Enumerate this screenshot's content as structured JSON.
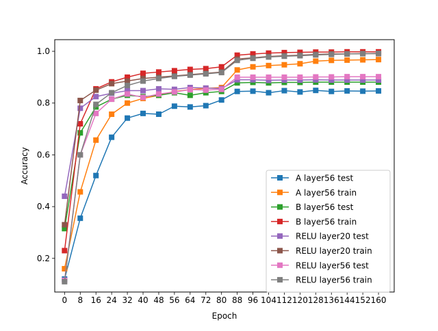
{
  "chart_data": {
    "type": "line",
    "title": "",
    "xlabel": "Epoch",
    "ylabel": "Accuracy",
    "xlim": [
      -5,
      168
    ],
    "ylim": [
      0.07,
      1.045
    ],
    "grid": false,
    "legend_position": "lower-right",
    "x": [
      0,
      8,
      16,
      24,
      32,
      40,
      48,
      56,
      64,
      72,
      80,
      88,
      96,
      104,
      112,
      120,
      128,
      136,
      144,
      152,
      160
    ],
    "xticks": [
      0,
      8,
      16,
      24,
      32,
      40,
      48,
      56,
      64,
      72,
      80,
      88,
      96,
      104,
      112,
      120,
      128,
      136,
      144,
      152,
      160
    ],
    "yticks": [
      0.2,
      0.4,
      0.6,
      0.8,
      1.0
    ],
    "ytick_labels": [
      "0.2",
      "0.4",
      "0.6",
      "0.8",
      "1.0"
    ],
    "series": [
      {
        "name": "A layer56 test",
        "color": "#1f77b4",
        "marker": "square",
        "values": [
          0.12,
          0.355,
          0.52,
          0.668,
          0.742,
          0.76,
          0.757,
          0.788,
          0.785,
          0.79,
          0.812,
          0.845,
          0.846,
          0.84,
          0.848,
          0.843,
          0.849,
          0.845,
          0.847,
          0.846,
          0.847
        ]
      },
      {
        "name": "A layer56 train",
        "color": "#ff7f0e",
        "marker": "square",
        "values": [
          0.16,
          0.457,
          0.657,
          0.757,
          0.8,
          0.818,
          0.83,
          0.845,
          0.852,
          0.857,
          0.86,
          0.928,
          0.94,
          0.945,
          0.948,
          0.952,
          0.962,
          0.965,
          0.966,
          0.967,
          0.968
        ]
      },
      {
        "name": "B layer56 test",
        "color": "#2ca02c",
        "marker": "square",
        "values": [
          0.315,
          0.685,
          0.785,
          0.815,
          0.83,
          0.825,
          0.83,
          0.84,
          0.83,
          0.84,
          0.845,
          0.878,
          0.88,
          0.878,
          0.88,
          0.88,
          0.881,
          0.881,
          0.881,
          0.881,
          0.881
        ]
      },
      {
        "name": "B layer56 train",
        "color": "#d62728",
        "marker": "square",
        "values": [
          0.23,
          0.72,
          0.855,
          0.882,
          0.9,
          0.915,
          0.92,
          0.925,
          0.93,
          0.933,
          0.94,
          0.985,
          0.99,
          0.993,
          0.995,
          0.996,
          0.997,
          0.997,
          0.998,
          0.998,
          0.998
        ]
      },
      {
        "name": "RELU layer20 test",
        "color": "#9467bd",
        "marker": "square",
        "values": [
          0.44,
          0.78,
          0.825,
          0.838,
          0.848,
          0.848,
          0.855,
          0.853,
          0.86,
          0.858,
          0.856,
          0.89,
          0.89,
          0.888,
          0.889,
          0.889,
          0.89,
          0.889,
          0.889,
          0.889,
          0.889
        ]
      },
      {
        "name": "RELU layer20 train",
        "color": "#8c564b",
        "marker": "square",
        "values": [
          0.33,
          0.81,
          0.85,
          0.875,
          0.885,
          0.895,
          0.9,
          0.905,
          0.91,
          0.915,
          0.92,
          0.97,
          0.975,
          0.98,
          0.983,
          0.985,
          0.988,
          0.99,
          0.99,
          0.991,
          0.991
        ]
      },
      {
        "name": "RELU layer56 test",
        "color": "#e377c2",
        "marker": "square",
        "values": [
          0.115,
          0.6,
          0.76,
          0.815,
          0.835,
          0.822,
          0.835,
          0.843,
          0.852,
          0.85,
          0.853,
          0.9,
          0.9,
          0.9,
          0.9,
          0.9,
          0.901,
          0.901,
          0.902,
          0.902,
          0.902
        ]
      },
      {
        "name": "RELU layer56 train",
        "color": "#7f7f7f",
        "marker": "square",
        "values": [
          0.11,
          0.6,
          0.795,
          0.84,
          0.868,
          0.885,
          0.895,
          0.903,
          0.908,
          0.913,
          0.918,
          0.965,
          0.973,
          0.978,
          0.981,
          0.983,
          0.986,
          0.988,
          0.99,
          0.991,
          0.992
        ]
      }
    ]
  }
}
